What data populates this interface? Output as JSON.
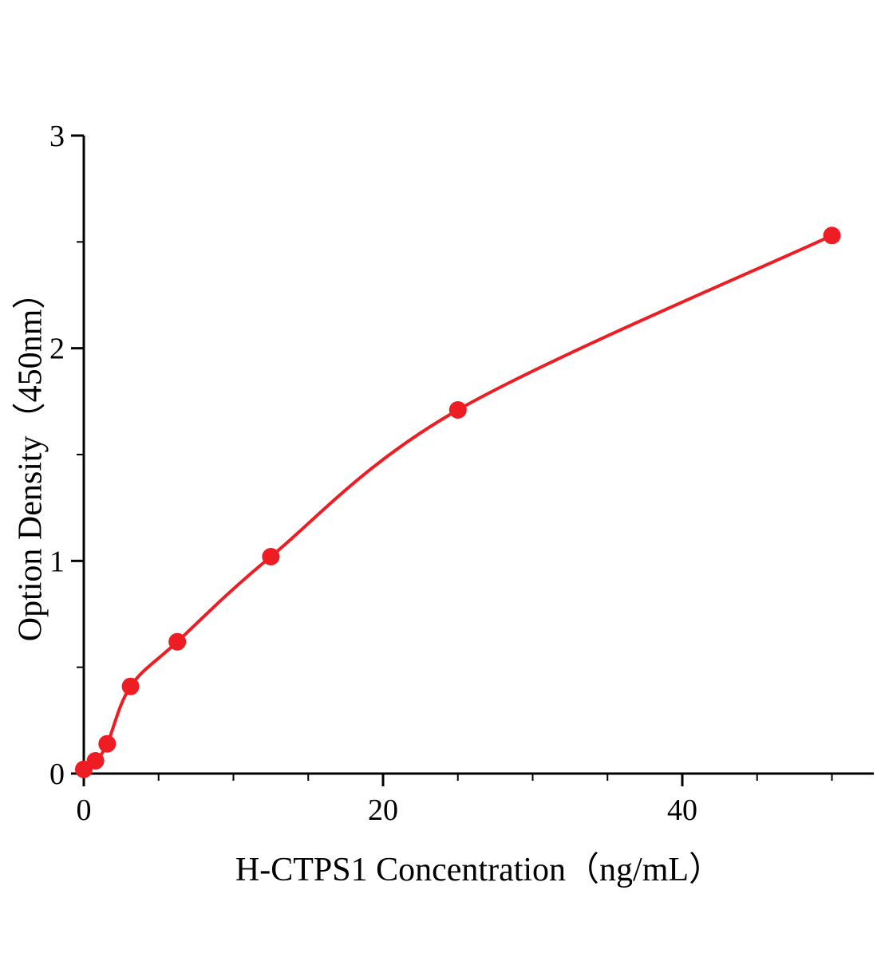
{
  "figure": {
    "background": "#ffffff"
  },
  "chart_data": {
    "type": "scatter",
    "title": "",
    "xlabel": "H-CTPS1 Concentration（ng/mL）",
    "ylabel": "Option Density（450nm）",
    "x": [
      0,
      0.78,
      1.56,
      3.125,
      6.25,
      12.5,
      25,
      50
    ],
    "y": [
      0.02,
      0.06,
      0.14,
      0.41,
      0.62,
      1.02,
      1.71,
      2.53
    ],
    "fit_line_through_points": true,
    "xlim": [
      0,
      52.8
    ],
    "ylim": [
      0,
      3
    ],
    "x_major_ticks": [
      0,
      20,
      40
    ],
    "x_minor_tick_step": 5,
    "y_major_ticks": [
      0,
      1,
      2,
      3
    ],
    "y_minor_tick_step": 0.5,
    "grid": false,
    "legend": false,
    "line_color": "#ee1c23",
    "marker_color": "#ee1c23",
    "marker_radius": 11,
    "axis_color": "#000000",
    "text_color": "#000000"
  }
}
